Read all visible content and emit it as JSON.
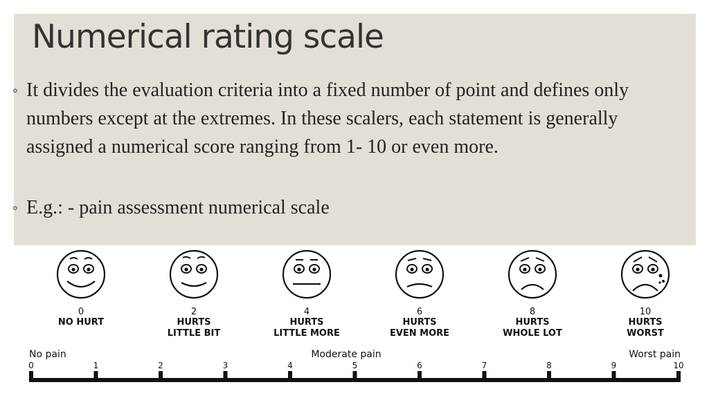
{
  "slide": {
    "title": "Numerical rating scale",
    "bullets": [
      "It divides the evaluation criteria into a fixed number of point and defines only numbers except at the extremes. In these scalers, each statement is generally assigned a numerical score ranging from 1- 10 or even more.",
      "E.g.: - pain assessment numerical scale"
    ],
    "bullet_mark": "◦"
  },
  "scale": {
    "faces": [
      {
        "score": "0",
        "line1": "NO HURT",
        "line2": ""
      },
      {
        "score": "2",
        "line1": "HURTS",
        "line2": "LITTLE BIT"
      },
      {
        "score": "4",
        "line1": "HURTS",
        "line2": "LITTLE MORE"
      },
      {
        "score": "6",
        "line1": "HURTS",
        "line2": "EVEN MORE"
      },
      {
        "score": "8",
        "line1": "HURTS",
        "line2": "WHOLE LOT"
      },
      {
        "score": "10",
        "line1": "HURTS",
        "line2": "WORST"
      }
    ],
    "range_labels": {
      "left": "No pain",
      "middle": "Moderate pain",
      "right": "Worst pain"
    },
    "ticks": [
      "0",
      "1",
      "2",
      "3",
      "4",
      "5",
      "6",
      "7",
      "8",
      "9",
      "10"
    ]
  }
}
